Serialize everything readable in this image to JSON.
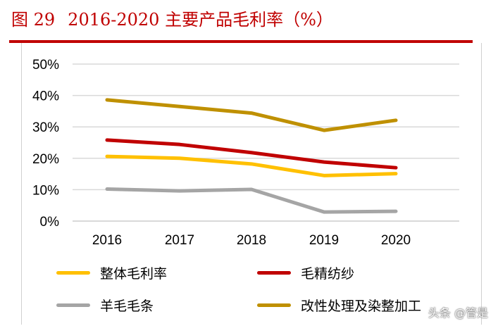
{
  "title": {
    "figure": "图 29",
    "text": "2016-2020 主要产品毛利率（%）"
  },
  "watermark": "头条 @管是",
  "chart_data": {
    "type": "line",
    "title": "2016-2020 主要产品毛利率（%）",
    "categories": [
      "2016",
      "2017",
      "2018",
      "2019",
      "2020"
    ],
    "ylim": [
      0,
      50
    ],
    "yticks": [
      "0%",
      "10%",
      "20%",
      "30%",
      "40%",
      "50%"
    ],
    "grid": true,
    "legend_position": "bottom",
    "series": [
      {
        "name": "整体毛利率",
        "color": "#ffc000",
        "values": [
          20.6,
          20.0,
          18.2,
          14.5,
          15.1
        ]
      },
      {
        "name": "毛精纺纱",
        "color": "#c00000",
        "values": [
          25.8,
          24.4,
          21.8,
          18.8,
          17.0
        ]
      },
      {
        "name": "羊毛毛条",
        "color": "#a5a5a5",
        "values": [
          10.2,
          9.6,
          10.1,
          2.9,
          3.1
        ]
      },
      {
        "name": "改性处理及染整加工",
        "color": "#bf9000",
        "values": [
          38.6,
          36.5,
          34.4,
          28.9,
          32.1
        ]
      }
    ]
  }
}
